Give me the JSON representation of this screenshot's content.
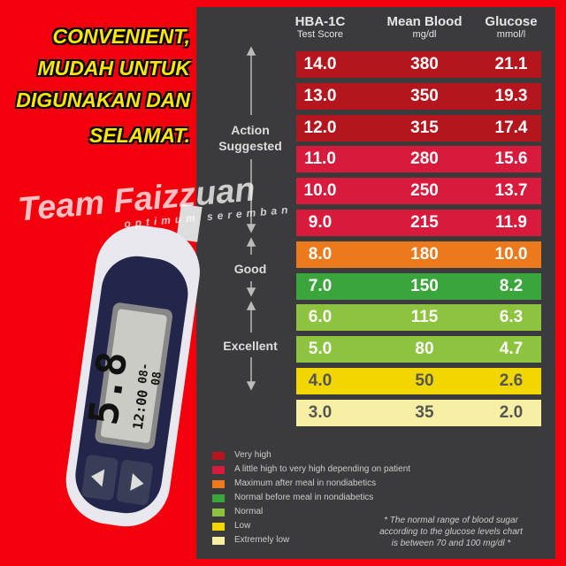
{
  "slogan": [
    "CONVENIENT,",
    "MUDAH UNTUK",
    "DIGUNAKAN DAN",
    "SELAMAT."
  ],
  "watermark": {
    "title": "Team Faizzuan",
    "subtitle": "optimum seremban"
  },
  "meter": {
    "reading": "5.8",
    "time": "12:00",
    "date": "08-08"
  },
  "table": {
    "headers": [
      {
        "title": "HBA-1C",
        "unit": "Test Score"
      },
      {
        "title": "Mean Blood",
        "unit": "mg/dl"
      },
      {
        "title": "Glucose",
        "unit": "mmol/l"
      }
    ],
    "rows": [
      {
        "cells": [
          "14.0",
          "380",
          "21.1"
        ],
        "color": "#b5151d"
      },
      {
        "cells": [
          "13.0",
          "350",
          "19.3"
        ],
        "color": "#b5151d"
      },
      {
        "cells": [
          "12.0",
          "315",
          "17.4"
        ],
        "color": "#b5151d"
      },
      {
        "cells": [
          "11.0",
          "280",
          "15.6"
        ],
        "color": "#d81a3c"
      },
      {
        "cells": [
          "10.0",
          "250",
          "13.7"
        ],
        "color": "#d81a3c"
      },
      {
        "cells": [
          "9.0",
          "215",
          "11.9"
        ],
        "color": "#d81a3c"
      },
      {
        "cells": [
          "8.0",
          "180",
          "10.0"
        ],
        "color": "#ec7a1c"
      },
      {
        "cells": [
          "7.0",
          "150",
          "8.2"
        ],
        "color": "#3aa53a"
      },
      {
        "cells": [
          "6.0",
          "115",
          "6.3"
        ],
        "color": "#8cc43f"
      },
      {
        "cells": [
          "5.0",
          "80",
          "4.7"
        ],
        "color": "#8cc43f"
      },
      {
        "cells": [
          "4.0",
          "50",
          "2.6"
        ],
        "color": "#f2d600"
      },
      {
        "cells": [
          "3.0",
          "35",
          "2.0"
        ],
        "color": "#f7efa4"
      }
    ],
    "groups": [
      "Action Suggested",
      "Good",
      "Excellent"
    ]
  },
  "legend": [
    {
      "label": "Very high",
      "color": "#b5151d"
    },
    {
      "label": "A little high to very high depending on patient",
      "color": "#d81a3c"
    },
    {
      "label": "Maximum after meal in nondiabetics",
      "color": "#ec7a1c"
    },
    {
      "label": "Normal before meal in nondiabetics",
      "color": "#3aa53a"
    },
    {
      "label": "Normal",
      "color": "#8cc43f"
    },
    {
      "label": "Low",
      "color": "#f2d600"
    },
    {
      "label": "Extremely low",
      "color": "#f7efa4"
    }
  ],
  "footnote": [
    "* The normal range of blood sugar",
    "according to the glucose levels chart",
    "is between 70 and 100 mg/dl *"
  ]
}
